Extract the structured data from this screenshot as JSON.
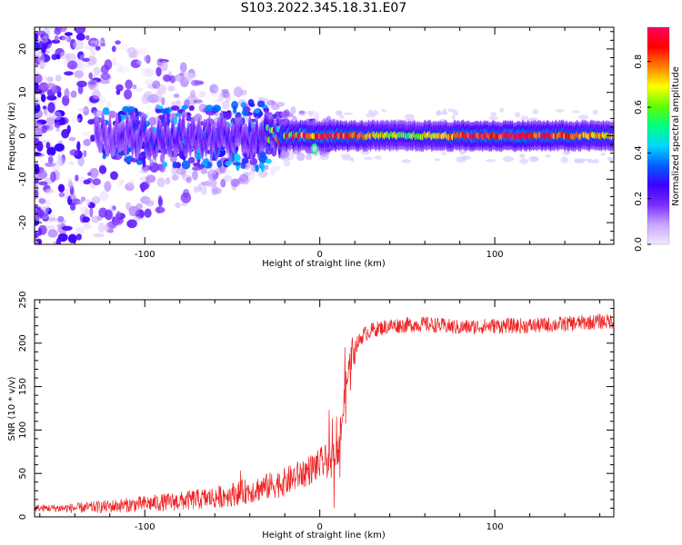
{
  "title": "S103.2022.345.18.31.E07",
  "chart_data": [
    {
      "type": "heatmap",
      "title": "",
      "xlabel": "Height of straight line (km)",
      "ylabel": "Frequency (Hz)",
      "xlim": [
        -163,
        168
      ],
      "ylim": [
        -25,
        25
      ],
      "x_ticks": [
        -100,
        0,
        100
      ],
      "y_ticks": [
        -20,
        -10,
        0,
        10,
        20
      ],
      "colorbar": {
        "label": "Normalized spectral amplitude",
        "range": [
          0,
          0.95
        ],
        "ticks": [
          0.0,
          0.2,
          0.4,
          0.6,
          0.8
        ],
        "colormap": [
          "#f2e8ff",
          "#c8a6ff",
          "#7a2dff",
          "#3c00ff",
          "#0060ff",
          "#00d8ff",
          "#00ff80",
          "#60ff00",
          "#ffff00",
          "#ff8000",
          "#ff0000",
          "#ff0060"
        ]
      },
      "ridge": {
        "frequency": 0,
        "description_points": [
          {
            "x": -120,
            "amp": 0.2
          },
          {
            "x": -80,
            "amp": 0.35
          },
          {
            "x": -40,
            "amp": 0.3
          },
          {
            "x": -15,
            "amp": 0.95
          },
          {
            "x": 10,
            "amp": 0.9
          },
          {
            "x": 50,
            "amp": 0.6
          },
          {
            "x": 85,
            "amp": 0.9
          },
          {
            "x": 120,
            "amp": 0.9
          },
          {
            "x": 160,
            "amp": 0.75
          }
        ]
      },
      "grid": false
    },
    {
      "type": "line",
      "title": "",
      "xlabel": "Height of straight line (km)",
      "ylabel": "SNR (10 * v/v)",
      "xlim": [
        -163,
        168
      ],
      "ylim": [
        0,
        250
      ],
      "x_ticks": [
        -100,
        0,
        100
      ],
      "y_ticks": [
        0,
        50,
        100,
        150,
        200,
        250
      ],
      "series": [
        {
          "color": "#ee2222",
          "x": [
            -163,
            -140,
            -120,
            -100,
            -80,
            -60,
            -40,
            -20,
            0,
            5,
            10,
            12,
            15,
            18,
            20,
            25,
            30,
            40,
            60,
            80,
            100,
            120,
            140,
            160,
            168
          ],
          "y": [
            10,
            10,
            12,
            15,
            18,
            22,
            30,
            40,
            60,
            65,
            70,
            100,
            150,
            185,
            195,
            210,
            215,
            220,
            222,
            218,
            220,
            220,
            222,
            225,
            225
          ]
        }
      ],
      "grid": false
    }
  ]
}
